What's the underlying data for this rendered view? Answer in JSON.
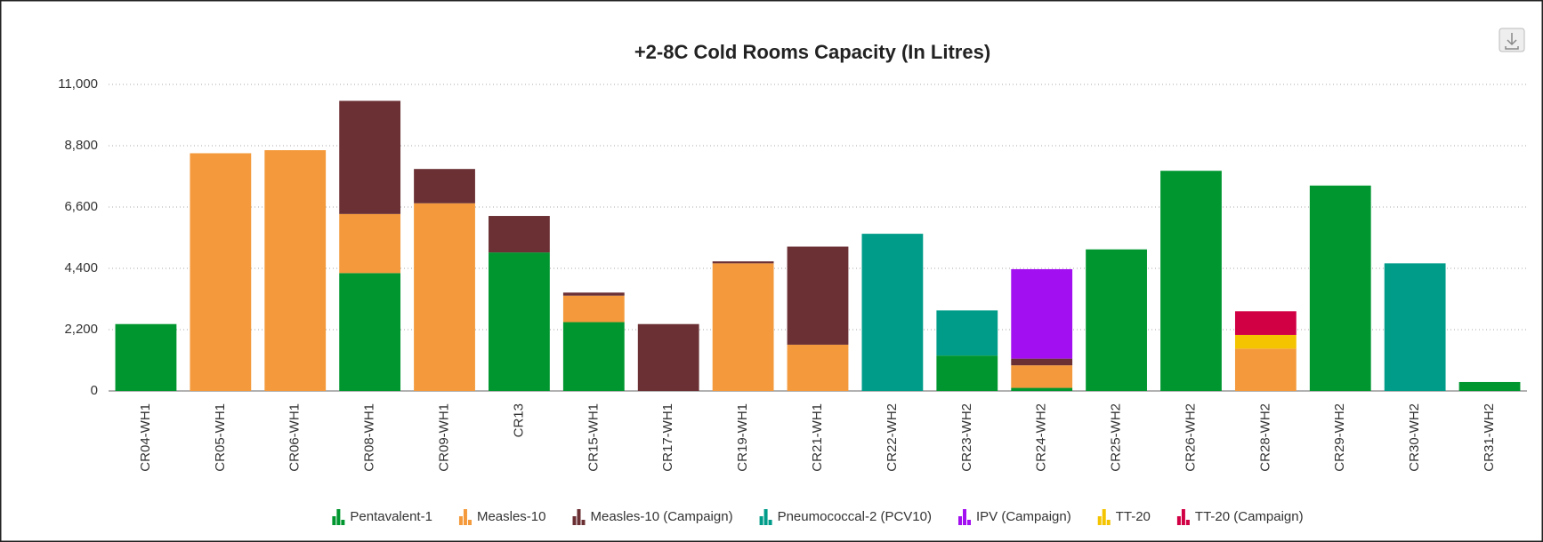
{
  "chart_data": {
    "type": "stacked_bar",
    "title": "+2-8C Cold Rooms Capacity (In Litres)",
    "categories": [
      "CR04-WH1",
      "CR05-WH1",
      "CR06-WH1",
      "CR08-WH1",
      "CR09-WH1",
      "CR13",
      "CR15-WH1",
      "CR17-WH1",
      "CR19-WH1",
      "CR21-WH1",
      "CR22-WH2",
      "CR23-WH2",
      "CR24-WH2",
      "CR25-WH2",
      "CR26-WH2",
      "CR28-WH2",
      "CR29-WH2",
      "CR30-WH2",
      "CR31-WH2"
    ],
    "series": [
      {
        "name": "Pentavalent-1",
        "color": "#00962f",
        "values": [
          2400,
          null,
          null,
          4230,
          null,
          4970,
          2470,
          null,
          null,
          null,
          null,
          1270,
          110,
          5080,
          7900,
          null,
          7370,
          null,
          320
        ]
      },
      {
        "name": "Measles-10",
        "color": "#f49a3c",
        "values": [
          null,
          8530,
          8640,
          2120,
          6735,
          null,
          950,
          null,
          4580,
          1660,
          null,
          null,
          810,
          null,
          null,
          1520,
          null,
          null,
          null
        ]
      },
      {
        "name": "Measles-10 (Campaign)",
        "color": "#6b3034",
        "values": [
          null,
          null,
          null,
          4060,
          1230,
          1310,
          110,
          2400,
          70,
          3520,
          null,
          null,
          240,
          null,
          null,
          null,
          null,
          null,
          null
        ]
      },
      {
        "name": "Pneumococcal-2 (PCV10)",
        "color": "#009c8a",
        "values": [
          null,
          null,
          null,
          null,
          null,
          null,
          null,
          null,
          null,
          null,
          5640,
          1620,
          null,
          null,
          null,
          null,
          null,
          4580,
          null
        ]
      },
      {
        "name": "IPV (Campaign)",
        "color": "#a20ff0",
        "values": [
          null,
          null,
          null,
          null,
          null,
          null,
          null,
          null,
          null,
          null,
          null,
          null,
          3210,
          null,
          null,
          null,
          null,
          null,
          null
        ]
      },
      {
        "name": "TT-20",
        "color": "#f5c400",
        "values": [
          null,
          null,
          null,
          null,
          null,
          null,
          null,
          null,
          null,
          null,
          null,
          null,
          null,
          null,
          null,
          490,
          null,
          null,
          null
        ]
      },
      {
        "name": "TT-20 (Campaign)",
        "color": "#d10045",
        "values": [
          null,
          null,
          null,
          null,
          null,
          null,
          null,
          null,
          null,
          null,
          null,
          null,
          null,
          null,
          null,
          850,
          null,
          null,
          null
        ]
      }
    ],
    "ylim": [
      0,
      11000
    ],
    "yticks": [
      0,
      {
        "value": 2200,
        "label": "2,200"
      },
      {
        "value": 4400,
        "label": "4,400"
      },
      {
        "value": 6600,
        "label": "6,600"
      },
      {
        "value": 8800,
        "label": "8,800"
      },
      {
        "value": 11000,
        "label": "11,000"
      }
    ],
    "grid": true,
    "legend": "bottom"
  }
}
